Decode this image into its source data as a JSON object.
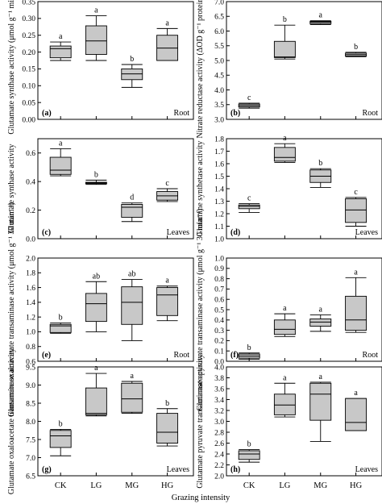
{
  "figure": {
    "xlabel": "Grazing intensity"
  },
  "chart_data": [
    {
      "panel": "(a)",
      "tissue": "Root",
      "type": "box",
      "ylabel": "Glutamate synthase activity (μmol g⁻¹ min⁻¹)",
      "ylim": [
        0,
        0.35
      ],
      "yticks": [
        0.0,
        0.05,
        0.1,
        0.15,
        0.2,
        0.25,
        0.3,
        0.35
      ],
      "ytick_decimals": 2,
      "categories": [
        "CK",
        "LG",
        "MG",
        "HG"
      ],
      "boxes": [
        {
          "min": 0.175,
          "q1": 0.183,
          "median": 0.21,
          "q3": 0.218,
          "max": 0.23,
          "letter": "a"
        },
        {
          "min": 0.175,
          "q1": 0.193,
          "median": 0.233,
          "q3": 0.278,
          "max": 0.308,
          "letter": "a"
        },
        {
          "min": 0.095,
          "q1": 0.118,
          "median": 0.135,
          "q3": 0.15,
          "max": 0.163,
          "letter": "b"
        },
        {
          "min": 0.175,
          "q1": 0.175,
          "median": 0.212,
          "q3": 0.25,
          "max": 0.27,
          "letter": "a"
        }
      ]
    },
    {
      "panel": "(b)",
      "tissue": "Root",
      "type": "box",
      "ylabel": "Nitrate reductase activity (ΔOD g⁻¹ protein h⁻¹)",
      "ylim": [
        3.0,
        7.0
      ],
      "yticks": [
        3.0,
        3.5,
        4.0,
        4.5,
        5.0,
        5.5,
        6.0,
        6.5,
        7.0
      ],
      "ytick_decimals": 1,
      "categories": [
        "CK",
        "LG",
        "MG",
        "HG"
      ],
      "boxes": [
        {
          "min": 3.38,
          "q1": 3.42,
          "median": 3.47,
          "q3": 3.52,
          "max": 3.55,
          "letter": "c"
        },
        {
          "min": 5.05,
          "q1": 5.1,
          "median": 5.12,
          "q3": 5.65,
          "max": 6.2,
          "letter": "b"
        },
        {
          "min": 6.22,
          "q1": 6.25,
          "median": 6.3,
          "q3": 6.33,
          "max": 6.35,
          "letter": "a"
        },
        {
          "min": 5.13,
          "q1": 5.15,
          "median": 5.2,
          "q3": 5.25,
          "max": 5.28,
          "letter": "b"
        }
      ]
    },
    {
      "panel": "(c)",
      "tissue": "Leaves",
      "type": "box",
      "ylabel": "Glutamate synthase activity",
      "ylim": [
        0,
        0.7
      ],
      "yticks": [
        0.0,
        0.2,
        0.4,
        0.6
      ],
      "ytick_decimals": 1,
      "categories": [
        "CK",
        "LG",
        "MG",
        "HG"
      ],
      "boxes": [
        {
          "min": 0.44,
          "q1": 0.45,
          "median": 0.48,
          "q3": 0.57,
          "max": 0.63,
          "letter": "a"
        },
        {
          "min": 0.38,
          "q1": 0.385,
          "median": 0.39,
          "q3": 0.395,
          "max": 0.41,
          "letter": "b"
        },
        {
          "min": 0.12,
          "q1": 0.15,
          "median": 0.22,
          "q3": 0.24,
          "max": 0.25,
          "letter": "d"
        },
        {
          "min": 0.26,
          "q1": 0.27,
          "median": 0.3,
          "q3": 0.33,
          "max": 0.35,
          "letter": "c"
        }
      ]
    },
    {
      "panel": "(d)",
      "tissue": "Leaves",
      "type": "box",
      "ylabel": "Glutamine synthetase activity",
      "ylim": [
        1.0,
        1.8
      ],
      "yticks": [
        1.0,
        1.1,
        1.2,
        1.3,
        1.4,
        1.5,
        1.6,
        1.7,
        1.8
      ],
      "ytick_decimals": 1,
      "categories": [
        "CK",
        "LG",
        "MG",
        "HG"
      ],
      "boxes": [
        {
          "min": 1.21,
          "q1": 1.24,
          "median": 1.26,
          "q3": 1.27,
          "max": 1.28,
          "letter": "c"
        },
        {
          "min": 1.61,
          "q1": 1.62,
          "median": 1.65,
          "q3": 1.73,
          "max": 1.76,
          "letter": "a"
        },
        {
          "min": 1.41,
          "q1": 1.45,
          "median": 1.5,
          "q3": 1.55,
          "max": 1.56,
          "letter": "b"
        },
        {
          "min": 1.1,
          "q1": 1.13,
          "median": 1.23,
          "q3": 1.32,
          "max": 1.33,
          "letter": "c"
        }
      ]
    },
    {
      "panel": "(e)",
      "tissue": "Root",
      "type": "box",
      "ylabel": "Glutamate oxaloacetate transaminase activity (μmol g⁻¹ 30 min⁻¹)",
      "ylim": [
        0.6,
        2.0
      ],
      "yticks": [
        0.6,
        0.8,
        1.0,
        1.2,
        1.4,
        1.6,
        1.8,
        2.0
      ],
      "ytick_decimals": 1,
      "categories": [
        "CK",
        "LG",
        "MG",
        "HG"
      ],
      "boxes": [
        {
          "min": 0.98,
          "q1": 0.99,
          "median": 1.08,
          "q3": 1.1,
          "max": 1.12,
          "letter": "b"
        },
        {
          "min": 1.0,
          "q1": 1.14,
          "median": 1.38,
          "q3": 1.52,
          "max": 1.68,
          "letter": "ab"
        },
        {
          "min": 0.88,
          "q1": 1.1,
          "median": 1.4,
          "q3": 1.61,
          "max": 1.71,
          "letter": "ab"
        },
        {
          "min": 1.15,
          "q1": 1.22,
          "median": 1.5,
          "q3": 1.6,
          "max": 1.62,
          "letter": "a"
        }
      ]
    },
    {
      "panel": "(f)",
      "tissue": "Root",
      "type": "box",
      "ylabel": "Glutamate pyruvate transaminase activity (μmol g⁻¹ 30 min⁻¹)",
      "ylim": [
        0,
        1.0
      ],
      "yticks": [
        0.0,
        0.1,
        0.2,
        0.3,
        0.4,
        0.5,
        0.6,
        0.7,
        0.8,
        0.9,
        1.0
      ],
      "ytick_decimals": 1,
      "categories": [
        "CK",
        "LG",
        "MG",
        "HG"
      ],
      "boxes": [
        {
          "min": 0.02,
          "q1": 0.03,
          "median": 0.05,
          "q3": 0.07,
          "max": 0.08,
          "letter": "b"
        },
        {
          "min": 0.24,
          "q1": 0.26,
          "median": 0.31,
          "q3": 0.4,
          "max": 0.46,
          "letter": "a"
        },
        {
          "min": 0.29,
          "q1": 0.34,
          "median": 0.38,
          "q3": 0.41,
          "max": 0.45,
          "letter": "a"
        },
        {
          "min": 0.28,
          "q1": 0.3,
          "median": 0.4,
          "q3": 0.63,
          "max": 0.81,
          "letter": "a"
        }
      ]
    },
    {
      "panel": "(g)",
      "tissue": "Leaves",
      "type": "box",
      "ylabel": "Glutamate oxaloacetate transaminase activity",
      "ylim": [
        6.5,
        9.5
      ],
      "yticks": [
        6.5,
        7.0,
        7.5,
        8.0,
        8.5,
        9.0,
        9.5
      ],
      "ytick_decimals": 1,
      "categories": [
        "CK",
        "LG",
        "MG",
        "HG"
      ],
      "boxes": [
        {
          "min": 7.05,
          "q1": 7.28,
          "median": 7.6,
          "q3": 7.75,
          "max": 7.78,
          "letter": "b"
        },
        {
          "min": 8.15,
          "q1": 8.18,
          "median": 8.22,
          "q3": 8.92,
          "max": 9.32,
          "letter": "a"
        },
        {
          "min": 8.22,
          "q1": 8.25,
          "median": 8.62,
          "q3": 9.05,
          "max": 9.1,
          "letter": "a"
        },
        {
          "min": 7.32,
          "q1": 7.4,
          "median": 7.7,
          "q3": 8.22,
          "max": 8.35,
          "letter": "b"
        }
      ]
    },
    {
      "panel": "(h)",
      "tissue": "Leaves",
      "type": "box",
      "ylabel": "Glutamate pyruvate transaminase activity",
      "ylim": [
        2.0,
        4.0
      ],
      "yticks": [
        2.0,
        2.2,
        2.4,
        2.6,
        2.8,
        3.0,
        3.2,
        3.4,
        3.6,
        3.8,
        4.0
      ],
      "ytick_decimals": 1,
      "categories": [
        "CK",
        "LG",
        "MG",
        "HG"
      ],
      "boxes": [
        {
          "min": 2.25,
          "q1": 2.3,
          "median": 2.4,
          "q3": 2.46,
          "max": 2.48,
          "letter": "b"
        },
        {
          "min": 3.08,
          "q1": 3.12,
          "median": 3.3,
          "q3": 3.5,
          "max": 3.7,
          "letter": "a"
        },
        {
          "min": 2.63,
          "q1": 3.02,
          "median": 3.5,
          "q3": 3.7,
          "max": 3.72,
          "letter": "a"
        },
        {
          "min": 2.83,
          "q1": 2.83,
          "median": 2.98,
          "q3": 3.42,
          "max": 3.42,
          "letter": "a"
        }
      ]
    }
  ]
}
